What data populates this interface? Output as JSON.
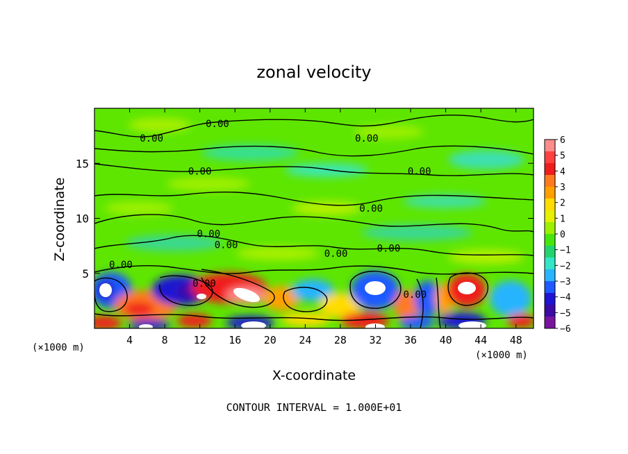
{
  "chart_data": {
    "type": "heatmap",
    "title": "zonal velocity",
    "xlabel": "X-coordinate",
    "ylabel": "Z-coordinate",
    "x_unit_left": "(×1000 m)",
    "x_unit_right": "(×1000 m)",
    "footer": "CONTOUR INTERVAL = 1.000E+01",
    "xlim": [
      0,
      50
    ],
    "ylim": [
      0,
      20
    ],
    "x_ticks": [
      "4",
      "8",
      "12",
      "16",
      "20",
      "24",
      "28",
      "32",
      "36",
      "40",
      "44",
      "48"
    ],
    "y_ticks": [
      "5",
      "10",
      "15"
    ],
    "colorbar": {
      "range": [
        -6,
        6
      ],
      "ticks": [
        "6",
        "5",
        "4",
        "3",
        "2",
        "1",
        "0",
        "−1",
        "−2",
        "−3",
        "−4",
        "−5",
        "−6"
      ],
      "colors": [
        "#ff8c8c",
        "#ff4040",
        "#f01c1c",
        "#ff7a1e",
        "#ffa000",
        "#ffdc00",
        "#e6f000",
        "#9cf000",
        "#46e60a",
        "#21d46e",
        "#32e6c8",
        "#28b4ff",
        "#1e5aff",
        "#1e14d2",
        "#3c0aa5",
        "#7814a0"
      ]
    },
    "contour_labels": [
      {
        "text": "0.00",
        "x": 14.0,
        "y": 18.6
      },
      {
        "text": "0.00",
        "x": 6.5,
        "y": 17.3
      },
      {
        "text": "0.00",
        "x": 31.0,
        "y": 17.3
      },
      {
        "text": "0.00",
        "x": 12.0,
        "y": 14.3
      },
      {
        "text": "0.00",
        "x": 37.0,
        "y": 14.3
      },
      {
        "text": "0.00",
        "x": 31.5,
        "y": 10.9
      },
      {
        "text": "0.00",
        "x": 13.0,
        "y": 8.6
      },
      {
        "text": "0.00",
        "x": 15.0,
        "y": 7.6
      },
      {
        "text": "0.00",
        "x": 27.5,
        "y": 6.8
      },
      {
        "text": "0.00",
        "x": 33.5,
        "y": 7.3
      },
      {
        "text": "0.00",
        "x": 3.0,
        "y": 5.8
      },
      {
        "text": "0.00",
        "x": 12.5,
        "y": 4.1
      },
      {
        "text": "0.00",
        "x": 36.5,
        "y": 3.1
      }
    ]
  }
}
